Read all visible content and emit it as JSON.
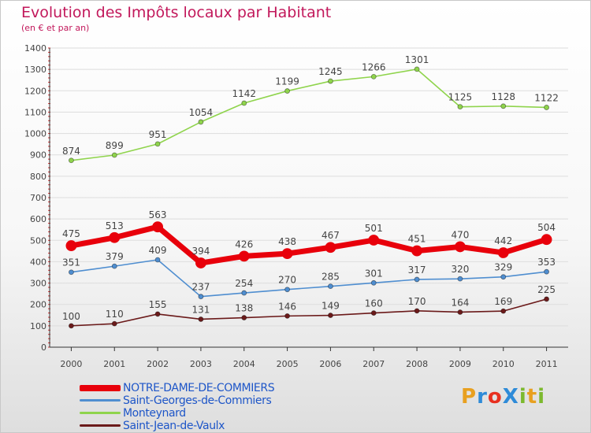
{
  "title": "Evolution des Impôts locaux par Habitant",
  "subtitle": "(en € et par an)",
  "logo": {
    "text": "ProXiti",
    "letters": [
      "P",
      "r",
      "o",
      "X",
      "i",
      "t",
      "i"
    ],
    "colors": [
      "#e8a020",
      "#2e8bd8",
      "#e83020",
      "#2e8bd8",
      "#7cb92e",
      "#e8a020",
      "#7cb92e"
    ]
  },
  "chart_data": {
    "type": "line",
    "title": "Evolution des Impôts locaux par Habitant",
    "subtitle": "(en € et par an)",
    "xlabel": "",
    "ylabel": "",
    "categories": [
      "2000",
      "2001",
      "2002",
      "2003",
      "2004",
      "2005",
      "2006",
      "2007",
      "2008",
      "2009",
      "2010",
      "2011"
    ],
    "ylim": [
      0,
      1400
    ],
    "yticks": [
      0,
      100,
      200,
      300,
      400,
      500,
      600,
      700,
      800,
      900,
      1000,
      1100,
      1200,
      1300,
      1400
    ],
    "grid": "horizontal",
    "legend_position": "bottom-left",
    "series": [
      {
        "name": "NOTRE-DAME-DE-COMMIERS",
        "color": "#e8000b",
        "emphasis": true,
        "values": [
          475,
          513,
          563,
          394,
          426,
          438,
          467,
          501,
          451,
          470,
          442,
          504
        ]
      },
      {
        "name": "Saint-Georges-de-Commiers",
        "color": "#4f8ed0",
        "values": [
          351,
          379,
          409,
          237,
          254,
          270,
          285,
          301,
          317,
          320,
          329,
          353
        ]
      },
      {
        "name": "Monteynard",
        "color": "#8fd44c",
        "values": [
          874,
          899,
          951,
          1054,
          1142,
          1199,
          1245,
          1266,
          1301,
          1125,
          1128,
          1122
        ]
      },
      {
        "name": "Saint-Jean-de-Vaulx",
        "color": "#6b1a1a",
        "values": [
          100,
          110,
          155,
          131,
          138,
          146,
          149,
          160,
          170,
          164,
          169,
          225
        ]
      }
    ]
  }
}
